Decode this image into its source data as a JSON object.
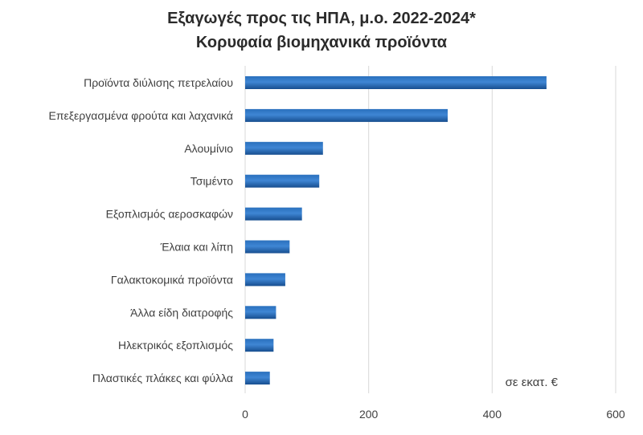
{
  "chart_data": {
    "type": "bar",
    "orientation": "horizontal",
    "title": "Εξαγωγές προς τις ΗΠΑ, μ.ο. 2022-2024*",
    "subtitle": "Κορυφαία βιομηχανικά προϊόντα",
    "unit_label": "σε εκατ. €",
    "categories": [
      "Προϊόντα διύλισης πετρελαίου",
      "Επεξεργασμένα φρούτα και λαχανικά",
      "Αλουμίνιο",
      "Τσιμέντο",
      "Εξοπλισμός αεροσκαφών",
      "Έλαια και λίπη",
      "Γαλακτοκομικά προϊόντα",
      "Άλλα είδη διατροφής",
      "Ηλεκτρικός εξοπλισμός",
      "Πλαστικές πλάκες και φύλλα"
    ],
    "values": [
      488,
      328,
      126,
      120,
      92,
      72,
      65,
      50,
      46,
      40
    ],
    "xlim": [
      0,
      600
    ],
    "xticks": [
      "0",
      "200",
      "400",
      "600"
    ],
    "grid": "vertical",
    "colors": {
      "bar_dark": "#1f5fa8",
      "bar_light": "#3f86d4",
      "grid": "#d9d9d9"
    }
  }
}
